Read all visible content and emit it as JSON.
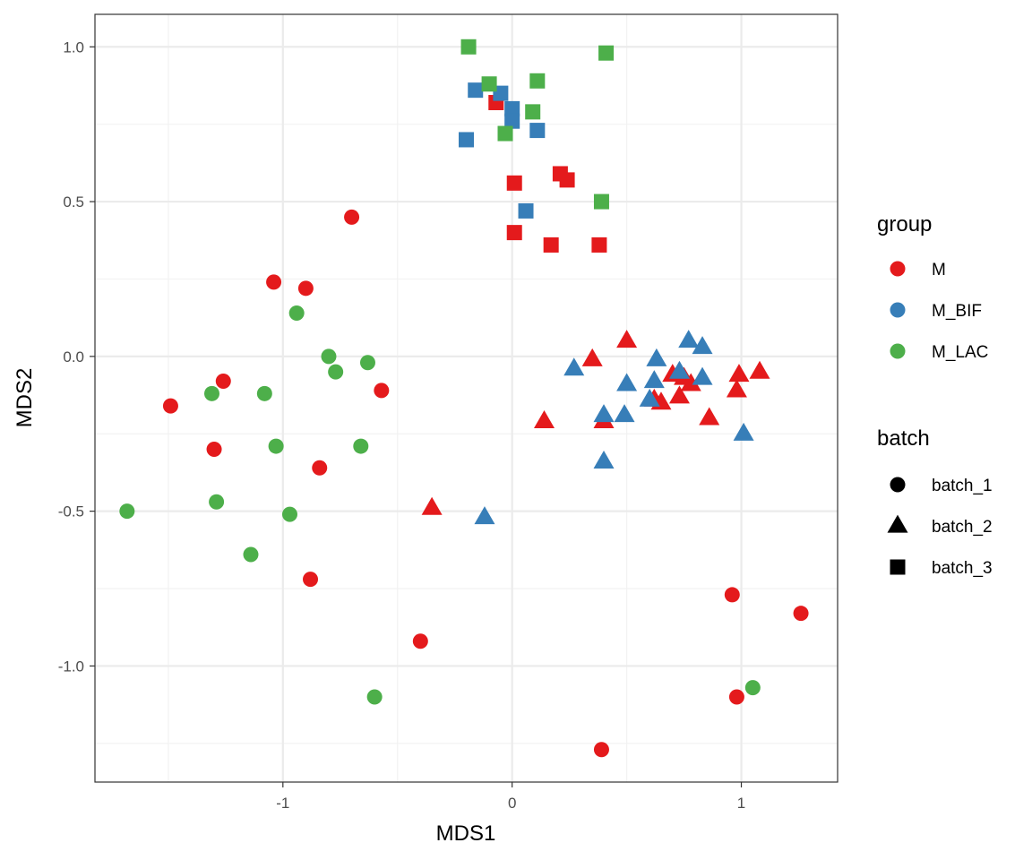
{
  "chart_data": {
    "type": "scatter",
    "title": "",
    "xlabel": "MDS1",
    "ylabel": "MDS2",
    "xlim": [
      -1.82,
      1.42
    ],
    "ylim": [
      -1.375,
      1.105
    ],
    "x_ticks": [
      -1,
      0,
      1
    ],
    "x_tick_labels": [
      "-1",
      "0",
      "1"
    ],
    "y_ticks": [
      -1.0,
      -0.5,
      0.0,
      0.5,
      1.0
    ],
    "y_tick_labels": [
      "-1.0",
      "-0.5",
      "0.0",
      "0.5",
      "1.0"
    ],
    "grid": true,
    "theme": "bw",
    "legend_position": "right",
    "legends": {
      "group": {
        "title": "group",
        "items": [
          {
            "label": "M",
            "color": "#E41A1C"
          },
          {
            "label": "M_BIF",
            "color": "#377EB8"
          },
          {
            "label": "M_LAC",
            "color": "#4DAF4A"
          }
        ]
      },
      "batch": {
        "title": "batch",
        "items": [
          {
            "label": "batch_1",
            "shape": "circle"
          },
          {
            "label": "batch_2",
            "shape": "triangle"
          },
          {
            "label": "batch_3",
            "shape": "square"
          }
        ]
      }
    },
    "series": [
      {
        "group": "M",
        "batch": "batch_1",
        "points": [
          [
            -0.7,
            0.45
          ],
          [
            -1.04,
            0.24
          ],
          [
            -0.9,
            0.22
          ],
          [
            -1.26,
            -0.08
          ],
          [
            -1.49,
            -0.16
          ],
          [
            -0.57,
            -0.11
          ],
          [
            -1.3,
            -0.3
          ],
          [
            -0.84,
            -0.36
          ],
          [
            -0.88,
            -0.72
          ],
          [
            -0.4,
            -0.92
          ],
          [
            0.96,
            -0.77
          ],
          [
            1.26,
            -0.83
          ],
          [
            0.98,
            -1.1
          ],
          [
            0.39,
            -1.27
          ]
        ]
      },
      {
        "group": "M_BIF",
        "batch": "batch_1",
        "points": []
      },
      {
        "group": "M_LAC",
        "batch": "batch_1",
        "points": [
          [
            -0.94,
            0.14
          ],
          [
            -0.8,
            0.0
          ],
          [
            -0.77,
            -0.05
          ],
          [
            -0.63,
            -0.02
          ],
          [
            -1.31,
            -0.12
          ],
          [
            -1.08,
            -0.12
          ],
          [
            -1.03,
            -0.29
          ],
          [
            -0.66,
            -0.29
          ],
          [
            -1.68,
            -0.5
          ],
          [
            -1.29,
            -0.47
          ],
          [
            -0.97,
            -0.51
          ],
          [
            -1.14,
            -0.64
          ],
          [
            -0.6,
            -1.1
          ],
          [
            1.05,
            -1.07
          ]
        ]
      },
      {
        "group": "M",
        "batch": "batch_2",
        "points": [
          [
            0.5,
            0.05
          ],
          [
            0.35,
            -0.01
          ],
          [
            0.14,
            -0.21
          ],
          [
            0.4,
            -0.21
          ],
          [
            0.62,
            -0.14
          ],
          [
            0.65,
            -0.15
          ],
          [
            0.7,
            -0.06
          ],
          [
            0.75,
            -0.07
          ],
          [
            0.78,
            -0.09
          ],
          [
            0.73,
            -0.13
          ],
          [
            0.86,
            -0.2
          ],
          [
            0.99,
            -0.06
          ],
          [
            0.98,
            -0.11
          ],
          [
            1.08,
            -0.05
          ],
          [
            -0.35,
            -0.49
          ]
        ]
      },
      {
        "group": "M_BIF",
        "batch": "batch_2",
        "points": [
          [
            0.77,
            0.05
          ],
          [
            0.83,
            0.03
          ],
          [
            0.63,
            -0.01
          ],
          [
            0.27,
            -0.04
          ],
          [
            0.73,
            -0.05
          ],
          [
            0.83,
            -0.07
          ],
          [
            0.5,
            -0.09
          ],
          [
            0.62,
            -0.08
          ],
          [
            0.6,
            -0.14
          ],
          [
            0.4,
            -0.19
          ],
          [
            0.49,
            -0.19
          ],
          [
            1.01,
            -0.25
          ],
          [
            0.4,
            -0.34
          ],
          [
            -0.12,
            -0.52
          ]
        ]
      },
      {
        "group": "M_LAC",
        "batch": "batch_2",
        "points": []
      },
      {
        "group": "M",
        "batch": "batch_3",
        "points": [
          [
            -0.07,
            0.82
          ],
          [
            0.01,
            0.56
          ],
          [
            0.21,
            0.59
          ],
          [
            0.24,
            0.57
          ],
          [
            0.01,
            0.4
          ],
          [
            0.17,
            0.36
          ],
          [
            0.38,
            0.36
          ]
        ]
      },
      {
        "group": "M_BIF",
        "batch": "batch_3",
        "points": [
          [
            -0.16,
            0.86
          ],
          [
            -0.05,
            0.85
          ],
          [
            0.0,
            0.8
          ],
          [
            0.0,
            0.76
          ],
          [
            -0.2,
            0.7
          ],
          [
            0.11,
            0.73
          ],
          [
            0.06,
            0.47
          ]
        ]
      },
      {
        "group": "M_LAC",
        "batch": "batch_3",
        "points": [
          [
            -0.19,
            1.0
          ],
          [
            0.41,
            0.98
          ],
          [
            -0.1,
            0.88
          ],
          [
            0.11,
            0.89
          ],
          [
            0.09,
            0.79
          ],
          [
            -0.03,
            0.72
          ],
          [
            0.39,
            0.5
          ]
        ]
      }
    ]
  }
}
